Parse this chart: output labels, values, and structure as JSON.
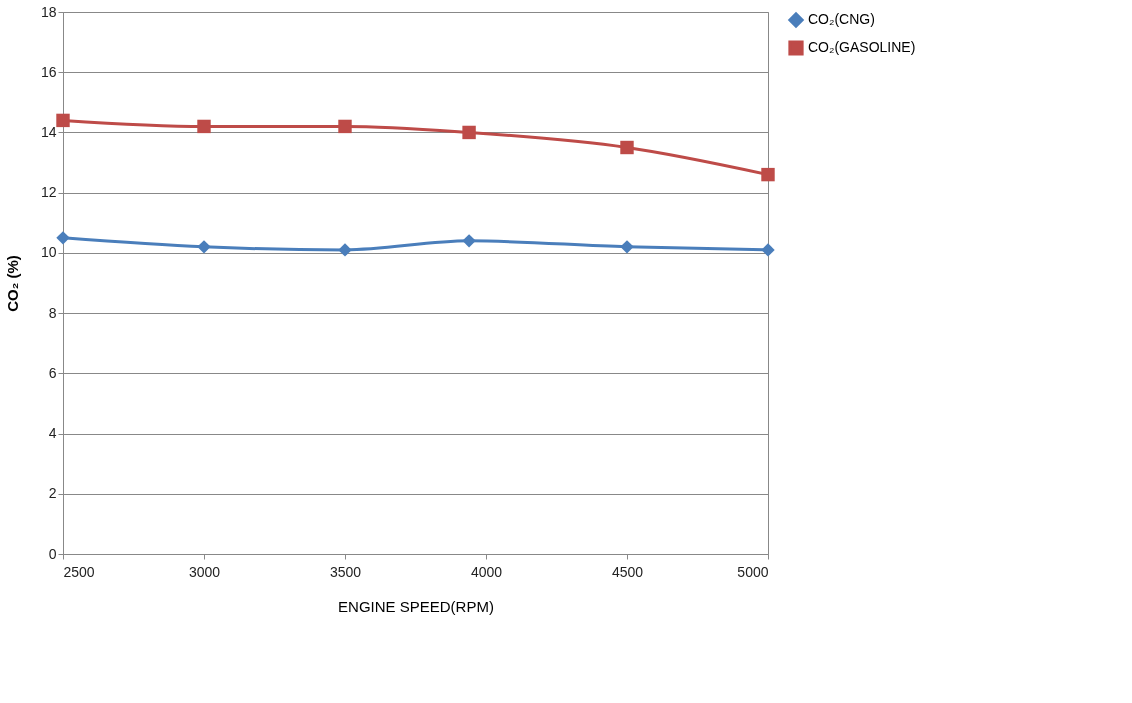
{
  "chart_data": {
    "type": "line",
    "xlabel": "ENGINE SPEED(RPM)",
    "ylabel": "CO₂ (%)",
    "x": [
      2500,
      3000,
      3500,
      3940,
      4500,
      5000
    ],
    "series": [
      {
        "name": "CO₂(CNG)",
        "color": "#4a7ebb",
        "marker": "diamond",
        "values": [
          10.5,
          10.2,
          10.1,
          10.4,
          10.2,
          10.1
        ]
      },
      {
        "name": "CO₂(GASOLINE)",
        "color": "#be4b48",
        "marker": "square",
        "values": [
          14.4,
          14.2,
          14.2,
          14.0,
          13.5,
          12.6
        ]
      }
    ],
    "xlim": [
      2500,
      5000
    ],
    "xticks": [
      2500,
      3000,
      3500,
      4000,
      4500,
      5000
    ],
    "ylim": [
      0,
      18
    ],
    "yticks": [
      0,
      2,
      4,
      6,
      8,
      10,
      12,
      14,
      16,
      18
    ],
    "grid": "y",
    "legend": "right",
    "line_style": "solid"
  }
}
